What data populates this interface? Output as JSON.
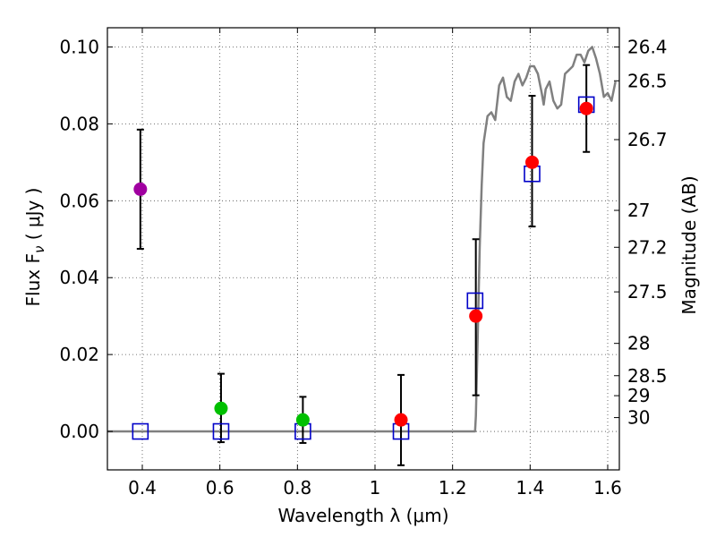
{
  "chart_data": {
    "type": "scatter",
    "title": "",
    "xlabel": "Wavelength  λ (μm)",
    "ylabel": "Flux  F",
    "ylabel_sub": "ν",
    "ylabel_unit": "  ( μJy )",
    "y2label": "Magnitude (AB)",
    "xlim": [
      0.31,
      1.63
    ],
    "ylim": [
      -0.01,
      0.105
    ],
    "grid": true,
    "x_ticks": [
      {
        "value": 0.4,
        "label": "0.4"
      },
      {
        "value": 0.6,
        "label": "0.6"
      },
      {
        "value": 0.8,
        "label": "0.8"
      },
      {
        "value": 1.0,
        "label": "1"
      },
      {
        "value": 1.2,
        "label": "1.2"
      },
      {
        "value": 1.4,
        "label": "1.4"
      },
      {
        "value": 1.6,
        "label": "1.6"
      }
    ],
    "y_ticks": [
      {
        "value": 0.0,
        "label": "0.00"
      },
      {
        "value": 0.02,
        "label": "0.02"
      },
      {
        "value": 0.04,
        "label": "0.04"
      },
      {
        "value": 0.06,
        "label": "0.06"
      },
      {
        "value": 0.08,
        "label": "0.08"
      },
      {
        "value": 0.1,
        "label": "0.10"
      }
    ],
    "y2_ticks": [
      {
        "flux": 0.1,
        "label": "26.4"
      },
      {
        "flux": 0.0912,
        "label": "26.5"
      },
      {
        "flux": 0.0759,
        "label": "26.7"
      },
      {
        "flux": 0.0575,
        "label": "27"
      },
      {
        "flux": 0.0479,
        "label": "27.2"
      },
      {
        "flux": 0.0363,
        "label": "27.5"
      },
      {
        "flux": 0.0229,
        "label": "28"
      },
      {
        "flux": 0.0145,
        "label": "28.5"
      },
      {
        "flux": 0.0093,
        "label": "29"
      },
      {
        "flux": 0.0036,
        "label": "30"
      }
    ],
    "observed": [
      {
        "x": 0.395,
        "y": 0.063,
        "err_lo": 0.0475,
        "err_hi": 0.0785,
        "color": "#a000a0"
      },
      {
        "x": 0.603,
        "y": 0.006,
        "err_lo": -0.0028,
        "err_hi": 0.015,
        "color": "#00c000"
      },
      {
        "x": 0.814,
        "y": 0.003,
        "err_lo": -0.003,
        "err_hi": 0.009,
        "color": "#00c000"
      },
      {
        "x": 1.067,
        "y": 0.003,
        "err_lo": -0.0088,
        "err_hi": 0.0147,
        "color": "#ff0000"
      },
      {
        "x": 1.26,
        "y": 0.03,
        "err_lo": 0.0094,
        "err_hi": 0.05,
        "color": "#ff0000"
      },
      {
        "x": 1.405,
        "y": 0.07,
        "err_lo": 0.0533,
        "err_hi": 0.0873,
        "color": "#ff0000"
      },
      {
        "x": 1.545,
        "y": 0.084,
        "err_lo": 0.0727,
        "err_hi": 0.0953,
        "color": "#ff0000"
      }
    ],
    "model_points": [
      {
        "x": 0.395,
        "y": 0.0
      },
      {
        "x": 0.603,
        "y": 0.0
      },
      {
        "x": 0.814,
        "y": 0.0
      },
      {
        "x": 1.067,
        "y": 0.0
      },
      {
        "x": 1.258,
        "y": 0.034
      },
      {
        "x": 1.405,
        "y": 0.067
      },
      {
        "x": 1.545,
        "y": 0.085
      }
    ],
    "model_sed": {
      "x": [
        0.31,
        1.258,
        1.26,
        1.265,
        1.27,
        1.275,
        1.28,
        1.29,
        1.3,
        1.31,
        1.32,
        1.33,
        1.34,
        1.35,
        1.36,
        1.37,
        1.38,
        1.39,
        1.4,
        1.41,
        1.42,
        1.43,
        1.435,
        1.44,
        1.45,
        1.46,
        1.47,
        1.48,
        1.49,
        1.5,
        1.51,
        1.52,
        1.53,
        1.54,
        1.55,
        1.56,
        1.57,
        1.58,
        1.59,
        1.6,
        1.61,
        1.62
      ],
      "y": [
        0.0,
        0.0,
        0.004,
        0.025,
        0.048,
        0.064,
        0.075,
        0.082,
        0.083,
        0.081,
        0.09,
        0.092,
        0.087,
        0.086,
        0.091,
        0.093,
        0.09,
        0.092,
        0.095,
        0.095,
        0.093,
        0.088,
        0.085,
        0.089,
        0.091,
        0.086,
        0.084,
        0.085,
        0.093,
        0.094,
        0.095,
        0.098,
        0.098,
        0.096,
        0.099,
        0.1,
        0.097,
        0.093,
        0.087,
        0.088,
        0.086,
        0.091
      ]
    }
  }
}
